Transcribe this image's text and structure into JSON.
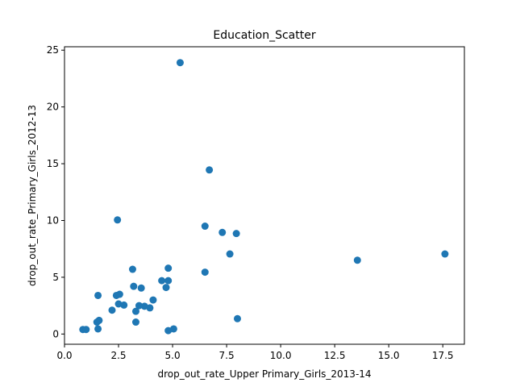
{
  "chart_data": {
    "type": "scatter",
    "title": "Education_Scatter",
    "xlabel": "drop_out_rate_Upper Primary_Girls_2013-14",
    "ylabel": "drop_out_rate_Primary_Girls_2012-13",
    "xlim": [
      0,
      18.5
    ],
    "ylim": [
      -0.9,
      25.3
    ],
    "xticks": [
      0,
      2.5,
      5,
      7.5,
      10,
      12.5,
      15,
      17.5
    ],
    "xtick_labels": [
      "0.0",
      "2.5",
      "5.0",
      "7.5",
      "10.0",
      "12.5",
      "15.0",
      "17.5"
    ],
    "yticks": [
      0,
      5,
      10,
      15,
      20,
      25
    ],
    "ytick_labels": [
      "0",
      "5",
      "10",
      "15",
      "20",
      "25"
    ],
    "grid": false,
    "marker_color": "#1f77b4",
    "points": [
      {
        "x": 5.35,
        "y": 23.9
      },
      {
        "x": 6.7,
        "y": 14.45
      },
      {
        "x": 2.45,
        "y": 10.05
      },
      {
        "x": 6.5,
        "y": 9.5
      },
      {
        "x": 7.3,
        "y": 8.95
      },
      {
        "x": 7.95,
        "y": 8.85
      },
      {
        "x": 7.65,
        "y": 7.05
      },
      {
        "x": 17.6,
        "y": 7.05
      },
      {
        "x": 13.55,
        "y": 6.5
      },
      {
        "x": 3.15,
        "y": 5.7
      },
      {
        "x": 4.8,
        "y": 5.8
      },
      {
        "x": 6.5,
        "y": 5.45
      },
      {
        "x": 4.5,
        "y": 4.7
      },
      {
        "x": 4.8,
        "y": 4.7
      },
      {
        "x": 3.2,
        "y": 4.2
      },
      {
        "x": 3.55,
        "y": 4.05
      },
      {
        "x": 4.7,
        "y": 4.1
      },
      {
        "x": 2.4,
        "y": 3.4
      },
      {
        "x": 2.55,
        "y": 3.5
      },
      {
        "x": 1.55,
        "y": 3.4
      },
      {
        "x": 4.1,
        "y": 3.0
      },
      {
        "x": 2.5,
        "y": 2.65
      },
      {
        "x": 2.75,
        "y": 2.55
      },
      {
        "x": 3.45,
        "y": 2.5
      },
      {
        "x": 3.7,
        "y": 2.45
      },
      {
        "x": 3.95,
        "y": 2.3
      },
      {
        "x": 2.2,
        "y": 2.1
      },
      {
        "x": 3.3,
        "y": 2.0
      },
      {
        "x": 8.0,
        "y": 1.35
      },
      {
        "x": 1.6,
        "y": 1.2
      },
      {
        "x": 1.5,
        "y": 1.05
      },
      {
        "x": 3.3,
        "y": 1.05
      },
      {
        "x": 0.85,
        "y": 0.4
      },
      {
        "x": 1.0,
        "y": 0.4
      },
      {
        "x": 1.55,
        "y": 0.45
      },
      {
        "x": 5.05,
        "y": 0.45
      },
      {
        "x": 4.8,
        "y": 0.3
      }
    ]
  }
}
